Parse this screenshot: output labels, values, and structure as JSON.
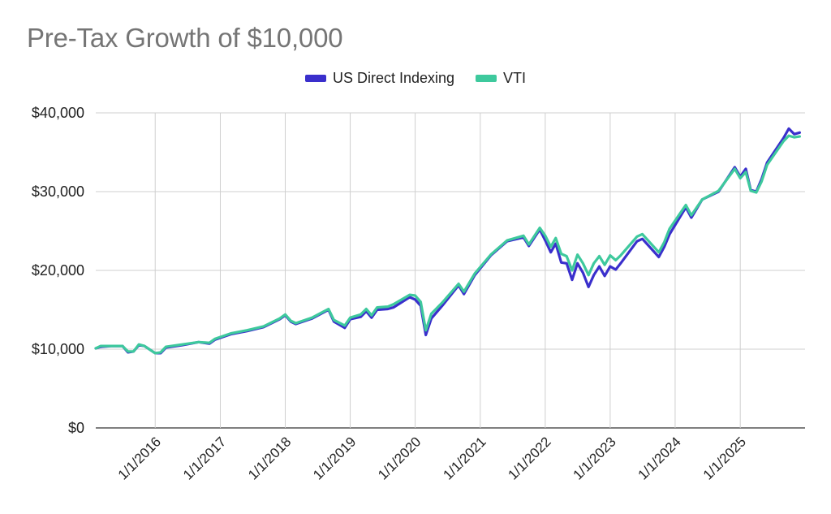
{
  "title": "Pre-Tax Growth of $10,000",
  "legend": [
    {
      "label": "US Direct Indexing",
      "color": "#3a2fcc"
    },
    {
      "label": "VTI",
      "color": "#3ec99d"
    }
  ],
  "chart_data": {
    "type": "line",
    "title": "Pre-Tax Growth of $10,000",
    "xlabel": "",
    "ylabel": "",
    "ylim": [
      0,
      40000
    ],
    "y_ticks": [
      0,
      10000,
      20000,
      30000,
      40000
    ],
    "y_tick_labels": [
      "$0",
      "$10,000",
      "$20,000",
      "$30,000",
      "$40,000"
    ],
    "x_range": [
      "2015-02-01",
      "2025-12-31"
    ],
    "x_ticks": [
      "2016-01-01",
      "2017-01-01",
      "2018-01-01",
      "2019-01-01",
      "2020-01-01",
      "2021-01-01",
      "2022-01-01",
      "2023-01-01",
      "2024-01-01",
      "2025-01-01"
    ],
    "x_tick_labels": [
      "1/1/2016",
      "1/1/2017",
      "1/1/2018",
      "1/1/2019",
      "1/1/2020",
      "1/1/2021",
      "1/1/2022",
      "1/1/2023",
      "1/1/2024",
      "1/1/2025"
    ],
    "grid": "vertical and horizontal",
    "legend_position": "top",
    "series": [
      {
        "name": "US Direct Indexing",
        "color": "#3a2fcc",
        "x": [
          "2015-02",
          "2015-03",
          "2015-05",
          "2015-07",
          "2015-08",
          "2015-09",
          "2015-10",
          "2015-11",
          "2016-01",
          "2016-02",
          "2016-03",
          "2016-06",
          "2016-09",
          "2016-11",
          "2016-12",
          "2017-03",
          "2017-06",
          "2017-09",
          "2017-12",
          "2018-01",
          "2018-02",
          "2018-03",
          "2018-06",
          "2018-09",
          "2018-10",
          "2018-12",
          "2019-01",
          "2019-03",
          "2019-04",
          "2019-05",
          "2019-06",
          "2019-08",
          "2019-09",
          "2019-12",
          "2020-01",
          "2020-02",
          "2020-03",
          "2020-04",
          "2020-06",
          "2020-09",
          "2020-10",
          "2020-12",
          "2021-03",
          "2021-06",
          "2021-09",
          "2021-10",
          "2021-12",
          "2022-01",
          "2022-02",
          "2022-03",
          "2022-04",
          "2022-05",
          "2022-06",
          "2022-07",
          "2022-08",
          "2022-09",
          "2022-10",
          "2022-11",
          "2022-12",
          "2023-01",
          "2023-02",
          "2023-03",
          "2023-06",
          "2023-07",
          "2023-10",
          "2023-11",
          "2023-12",
          "2024-03",
          "2024-04",
          "2024-06",
          "2024-09",
          "2024-12",
          "2025-01",
          "2025-02",
          "2025-03",
          "2025-04",
          "2025-05",
          "2025-06",
          "2025-09",
          "2025-10",
          "2025-11",
          "2025-12"
        ],
        "values": [
          10100,
          10300,
          10400,
          10400,
          9600,
          9700,
          10500,
          10400,
          9500,
          9500,
          10200,
          10500,
          10900,
          10700,
          11200,
          11900,
          12300,
          12800,
          13800,
          14300,
          13500,
          13200,
          13900,
          15000,
          13500,
          12700,
          13800,
          14100,
          14800,
          14000,
          15000,
          15100,
          15300,
          16600,
          16300,
          15500,
          11800,
          13900,
          15500,
          18100,
          17000,
          19400,
          21900,
          23700,
          24200,
          23100,
          25200,
          23800,
          22300,
          23400,
          21000,
          20900,
          18800,
          20900,
          19700,
          17900,
          19400,
          20500,
          19300,
          20500,
          20100,
          20900,
          23700,
          24000,
          21700,
          23000,
          24600,
          28000,
          26700,
          29000,
          30000,
          33100,
          31900,
          32900,
          30200,
          30000,
          31600,
          33700,
          36800,
          38000,
          37300,
          37500
        ]
      },
      {
        "name": "VTI",
        "color": "#3ec99d",
        "x": [
          "2015-02",
          "2015-03",
          "2015-05",
          "2015-07",
          "2015-08",
          "2015-09",
          "2015-10",
          "2015-11",
          "2016-01",
          "2016-02",
          "2016-03",
          "2016-06",
          "2016-09",
          "2016-11",
          "2016-12",
          "2017-03",
          "2017-06",
          "2017-09",
          "2017-12",
          "2018-01",
          "2018-02",
          "2018-03",
          "2018-06",
          "2018-09",
          "2018-10",
          "2018-12",
          "2019-01",
          "2019-03",
          "2019-04",
          "2019-05",
          "2019-06",
          "2019-08",
          "2019-09",
          "2019-12",
          "2020-01",
          "2020-02",
          "2020-03",
          "2020-04",
          "2020-06",
          "2020-09",
          "2020-10",
          "2020-12",
          "2021-03",
          "2021-06",
          "2021-09",
          "2021-10",
          "2021-12",
          "2022-01",
          "2022-02",
          "2022-03",
          "2022-04",
          "2022-05",
          "2022-06",
          "2022-07",
          "2022-08",
          "2022-09",
          "2022-10",
          "2022-11",
          "2022-12",
          "2023-01",
          "2023-02",
          "2023-03",
          "2023-06",
          "2023-07",
          "2023-10",
          "2023-11",
          "2023-12",
          "2024-03",
          "2024-04",
          "2024-06",
          "2024-09",
          "2024-12",
          "2025-01",
          "2025-02",
          "2025-03",
          "2025-04",
          "2025-05",
          "2025-06",
          "2025-09",
          "2025-10",
          "2025-11",
          "2025-12"
        ],
        "values": [
          10100,
          10400,
          10400,
          10400,
          9700,
          9700,
          10600,
          10400,
          9500,
          9600,
          10300,
          10600,
          10900,
          10800,
          11300,
          12000,
          12400,
          12900,
          13900,
          14400,
          13600,
          13300,
          14000,
          15100,
          13700,
          13000,
          14000,
          14400,
          15100,
          14300,
          15300,
          15400,
          15700,
          16900,
          16800,
          16000,
          12400,
          14500,
          15900,
          18300,
          17300,
          19600,
          22000,
          23800,
          24400,
          23300,
          25400,
          24400,
          23000,
          24100,
          22100,
          21800,
          20000,
          22000,
          20900,
          19400,
          20900,
          21800,
          20700,
          21900,
          21300,
          21900,
          24300,
          24600,
          22300,
          23600,
          25300,
          28300,
          27000,
          29000,
          30100,
          32900,
          31700,
          32500,
          30100,
          29900,
          31300,
          33400,
          36400,
          37100,
          36900,
          37000
        ]
      }
    ]
  }
}
